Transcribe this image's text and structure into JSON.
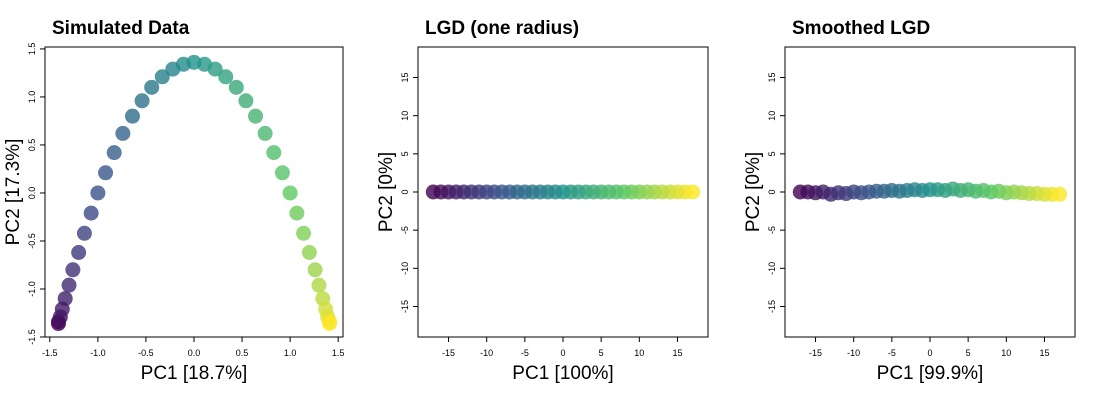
{
  "chart_data": [
    {
      "type": "scatter",
      "title": "Simulated Data",
      "x_label": "PC1 [18.7%]",
      "y_label": "PC2 [17.3%]",
      "x": [
        -1.41,
        -1.41,
        -1.39,
        -1.37,
        -1.34,
        -1.3,
        -1.26,
        -1.2,
        -1.14,
        -1.07,
        -1.0,
        -0.92,
        -0.83,
        -0.74,
        -0.64,
        -0.54,
        -0.44,
        -0.33,
        -0.22,
        -0.11,
        0,
        0.11,
        0.22,
        0.33,
        0.44,
        0.54,
        0.64,
        0.74,
        0.83,
        0.92,
        1.0,
        1.07,
        1.14,
        1.2,
        1.26,
        1.3,
        1.34,
        1.37,
        1.39,
        1.41,
        1.41
      ],
      "values": [
        -1.36,
        -1.34,
        -1.29,
        -1.21,
        -1.1,
        -0.96,
        -0.8,
        -0.62,
        -0.42,
        -0.21,
        0,
        0.21,
        0.42,
        0.62,
        0.8,
        0.96,
        1.1,
        1.21,
        1.29,
        1.34,
        1.36,
        1.34,
        1.29,
        1.21,
        1.1,
        0.96,
        0.8,
        0.62,
        0.42,
        0.21,
        0,
        -0.21,
        -0.42,
        -0.62,
        -0.8,
        -0.96,
        -1.1,
        -1.21,
        -1.29,
        -1.34,
        -1.36
      ],
      "color_scale": [
        "#440154",
        "#3b528b",
        "#21918c",
        "#5ec962",
        "#fde725"
      ],
      "xlim": [
        -1.55,
        1.55
      ],
      "ylim": [
        -1.5,
        1.52
      ],
      "xticks": [
        -1.5,
        {
          "value": -1,
          "label": "-1.0"
        },
        -0.5,
        {
          "value": 0,
          "label": "0.0"
        },
        0.5,
        {
          "value": 1,
          "label": "1.0"
        },
        1.5
      ],
      "yticks": [
        -1.5,
        {
          "value": -1,
          "label": "-1.0"
        },
        -0.5,
        {
          "value": 0,
          "label": "0.0"
        },
        0.5,
        {
          "value": 1,
          "label": "1.0"
        },
        1.5
      ]
    },
    {
      "type": "scatter",
      "title": "LGD (one radius)",
      "x_label": "PC1 [100%]",
      "y_label": "PC2 [0%]",
      "x": [
        -17,
        -16,
        -15,
        -14,
        -13,
        -12,
        -11,
        -10,
        -9,
        -8,
        -7,
        -6,
        -5,
        -4,
        -3,
        -2,
        -1,
        0,
        1,
        2,
        3,
        4,
        5,
        6,
        7,
        8,
        9,
        10,
        11,
        12,
        13,
        14,
        15,
        16,
        17
      ],
      "values": [
        0,
        0,
        0,
        0,
        0,
        0,
        0,
        0,
        0,
        0,
        0,
        0,
        0,
        0,
        0,
        0,
        0,
        0,
        0,
        0,
        0,
        0,
        0,
        0,
        0,
        0,
        0,
        0,
        0,
        0,
        0,
        0,
        0,
        0,
        0
      ],
      "color_scale": [
        "#440154",
        "#3b528b",
        "#21918c",
        "#5ec962",
        "#fde725"
      ],
      "xlim": [
        -19,
        19
      ],
      "ylim": [
        -19,
        19
      ],
      "xticks": [
        -15,
        -10,
        -5,
        0,
        5,
        10,
        15
      ],
      "yticks": [
        -15,
        -10,
        -5,
        0,
        5,
        10,
        15
      ]
    },
    {
      "type": "scatter",
      "title": "Smoothed LGD",
      "x_label": "PC1 [99.9%]",
      "y_label": "PC2 [0%]",
      "x": [
        -17,
        -16,
        -15,
        -14,
        -13,
        -12,
        -11,
        -10,
        -9,
        -8,
        -7,
        -6,
        -5,
        -4,
        -3,
        -2,
        -1,
        0,
        1,
        2,
        3,
        4,
        5,
        6,
        7,
        8,
        9,
        10,
        11,
        12,
        13,
        14,
        15,
        16,
        17
      ],
      "values": [
        0,
        0,
        -0.1,
        0,
        -0.3,
        -0.1,
        -0.2,
        0,
        -0.1,
        0,
        0.1,
        0.1,
        0.2,
        0.1,
        0.2,
        0.3,
        0.2,
        0.3,
        0.3,
        0.2,
        0.4,
        0.2,
        0.3,
        0.1,
        0.2,
        0,
        0.1,
        -0.1,
        0,
        -0.1,
        -0.2,
        -0.2,
        -0.3,
        -0.3,
        -0.3
      ],
      "color_scale": [
        "#440154",
        "#3b528b",
        "#21918c",
        "#5ec962",
        "#fde725"
      ],
      "xlim": [
        -19,
        19
      ],
      "ylim": [
        -19,
        19
      ],
      "xticks": [
        -15,
        -10,
        -5,
        0,
        5,
        10,
        15
      ],
      "yticks": [
        -15,
        -10,
        -5,
        0,
        5,
        10,
        15
      ]
    }
  ]
}
